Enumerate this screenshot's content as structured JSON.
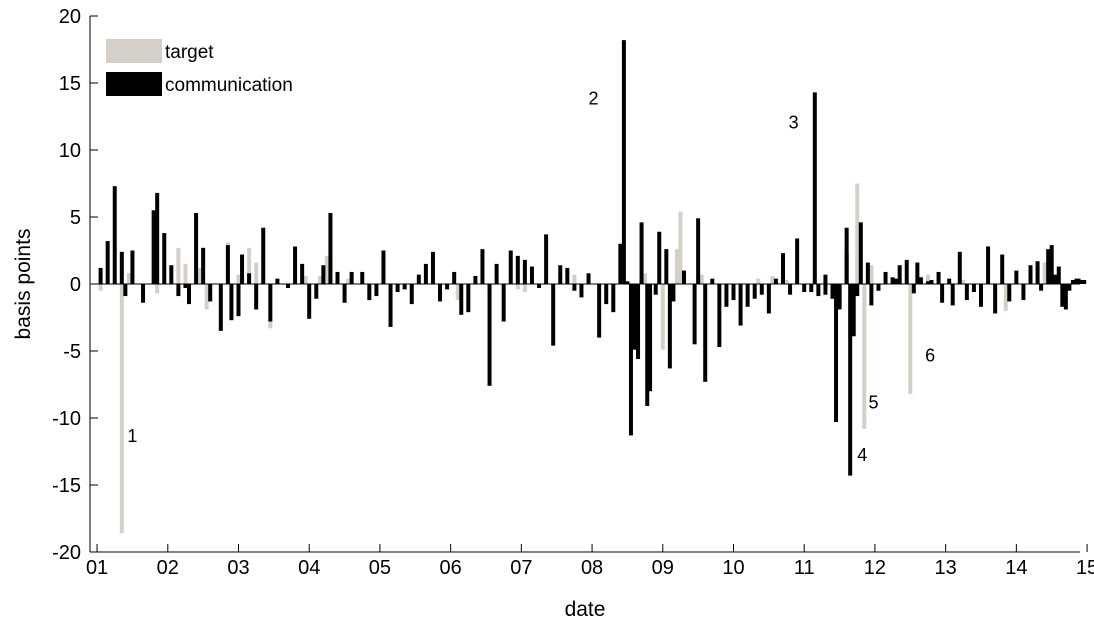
{
  "chart_data": {
    "type": "bar",
    "title": "",
    "xlabel": "date",
    "ylabel": "basis points",
    "xlim": [
      0.9,
      14.9
    ],
    "ylim": [
      -20,
      20
    ],
    "x_ticks": [
      "01",
      "02",
      "03",
      "04",
      "05",
      "06",
      "07",
      "08",
      "09",
      "10",
      "11",
      "12",
      "13",
      "14",
      "15"
    ],
    "y_ticks": [
      20,
      15,
      10,
      5,
      0,
      -5,
      -10,
      -15,
      -20
    ],
    "grid": false,
    "legend_position": "top-left",
    "colors": {
      "target": "#d4d0c8",
      "communication": "#000000"
    },
    "series": [
      {
        "name": "target",
        "values": [
          [
            1.05,
            -0.5
          ],
          [
            1.35,
            -18.6
          ],
          [
            1.45,
            0.8
          ],
          [
            1.85,
            -0.7
          ],
          [
            2.15,
            2.7
          ],
          [
            2.25,
            1.5
          ],
          [
            2.45,
            1.2
          ],
          [
            2.55,
            -1.9
          ],
          [
            2.85,
            3.1
          ],
          [
            3.0,
            0.7
          ],
          [
            3.15,
            2.7
          ],
          [
            3.25,
            1.6
          ],
          [
            3.45,
            -3.3
          ],
          [
            3.95,
            0.6
          ],
          [
            4.15,
            0.6
          ],
          [
            4.25,
            2.1
          ],
          [
            4.55,
            0.4
          ],
          [
            5.45,
            -0.3
          ],
          [
            6.1,
            -1.2
          ],
          [
            6.55,
            -0.6
          ],
          [
            6.95,
            -0.4
          ],
          [
            7.05,
            -0.6
          ],
          [
            7.75,
            0.7
          ],
          [
            8.2,
            -0.8
          ],
          [
            8.75,
            0.8
          ],
          [
            9.0,
            -4.9
          ],
          [
            9.2,
            2.6
          ],
          [
            9.25,
            5.4
          ],
          [
            9.55,
            0.7
          ],
          [
            10.35,
            0.4
          ],
          [
            10.55,
            0.6
          ],
          [
            10.75,
            0.3
          ],
          [
            11.3,
            0.3
          ],
          [
            11.75,
            7.5
          ],
          [
            11.85,
            -10.8
          ],
          [
            11.95,
            1.4
          ],
          [
            12.5,
            -8.2
          ],
          [
            12.75,
            0.7
          ],
          [
            13.25,
            0.3
          ],
          [
            13.85,
            -2.0
          ],
          [
            14.3,
            1.2
          ],
          [
            14.4,
            1.6
          ]
        ]
      },
      {
        "name": "communication",
        "values": [
          [
            1.05,
            1.2
          ],
          [
            1.15,
            3.2
          ],
          [
            1.25,
            7.3
          ],
          [
            1.35,
            2.4
          ],
          [
            1.4,
            -0.9
          ],
          [
            1.5,
            2.5
          ],
          [
            1.65,
            -1.4
          ],
          [
            1.8,
            5.5
          ],
          [
            1.85,
            6.8
          ],
          [
            1.95,
            3.8
          ],
          [
            2.05,
            1.4
          ],
          [
            2.15,
            -0.9
          ],
          [
            2.25,
            -0.3
          ],
          [
            2.3,
            -1.5
          ],
          [
            2.4,
            5.3
          ],
          [
            2.5,
            2.7
          ],
          [
            2.6,
            -1.3
          ],
          [
            2.75,
            -3.5
          ],
          [
            2.85,
            2.9
          ],
          [
            2.9,
            -2.7
          ],
          [
            3.0,
            -2.4
          ],
          [
            3.05,
            2.2
          ],
          [
            3.15,
            0.8
          ],
          [
            3.25,
            -1.9
          ],
          [
            3.35,
            4.2
          ],
          [
            3.45,
            -2.8
          ],
          [
            3.55,
            0.4
          ],
          [
            3.7,
            -0.3
          ],
          [
            3.8,
            2.8
          ],
          [
            3.9,
            1.5
          ],
          [
            4.0,
            -2.6
          ],
          [
            4.1,
            -1.1
          ],
          [
            4.2,
            1.4
          ],
          [
            4.3,
            5.3
          ],
          [
            4.4,
            0.9
          ],
          [
            4.5,
            -1.4
          ],
          [
            4.6,
            0.9
          ],
          [
            4.75,
            0.9
          ],
          [
            4.85,
            -1.2
          ],
          [
            4.95,
            -0.9
          ],
          [
            5.05,
            2.5
          ],
          [
            5.15,
            -3.2
          ],
          [
            5.25,
            -0.6
          ],
          [
            5.35,
            -0.4
          ],
          [
            5.45,
            -1.5
          ],
          [
            5.55,
            0.7
          ],
          [
            5.65,
            1.5
          ],
          [
            5.75,
            2.4
          ],
          [
            5.85,
            -1.3
          ],
          [
            5.95,
            -0.4
          ],
          [
            6.05,
            0.9
          ],
          [
            6.15,
            -2.3
          ],
          [
            6.25,
            -2.1
          ],
          [
            6.35,
            0.6
          ],
          [
            6.45,
            2.6
          ],
          [
            6.55,
            -7.6
          ],
          [
            6.65,
            1.5
          ],
          [
            6.75,
            -2.8
          ],
          [
            6.85,
            2.5
          ],
          [
            6.95,
            2.1
          ],
          [
            7.05,
            1.8
          ],
          [
            7.15,
            1.3
          ],
          [
            7.25,
            -0.3
          ],
          [
            7.35,
            3.7
          ],
          [
            7.45,
            -4.6
          ],
          [
            7.55,
            1.4
          ],
          [
            7.65,
            1.2
          ],
          [
            7.75,
            -0.5
          ],
          [
            7.85,
            -1.0
          ],
          [
            7.95,
            0.8
          ],
          [
            8.1,
            -4.0
          ],
          [
            8.2,
            -1.5
          ],
          [
            8.3,
            -2.1
          ],
          [
            8.4,
            3.0
          ],
          [
            8.5,
            0.2
          ],
          [
            8.6,
            -4.9
          ],
          [
            8.7,
            4.6
          ],
          [
            8.8,
            -1.6
          ],
          [
            8.9,
            -0.8
          ],
          [
            8.45,
            18.2
          ],
          [
            8.55,
            -11.3
          ],
          [
            8.65,
            -5.6
          ],
          [
            8.7,
            0.4
          ],
          [
            8.78,
            -9.1
          ],
          [
            8.82,
            -8.0
          ],
          [
            8.95,
            3.9
          ],
          [
            9.05,
            2.6
          ],
          [
            9.1,
            -6.3
          ],
          [
            9.15,
            -1.3
          ],
          [
            9.3,
            1.0
          ],
          [
            9.45,
            -4.5
          ],
          [
            9.5,
            4.9
          ],
          [
            9.6,
            -7.3
          ],
          [
            9.7,
            0.4
          ],
          [
            9.8,
            -4.7
          ],
          [
            9.9,
            -1.7
          ],
          [
            10.0,
            -1.2
          ],
          [
            10.1,
            -3.1
          ],
          [
            10.2,
            -1.7
          ],
          [
            10.3,
            -1.1
          ],
          [
            10.4,
            -0.8
          ],
          [
            10.5,
            -2.2
          ],
          [
            10.6,
            0.4
          ],
          [
            10.7,
            2.3
          ],
          [
            10.8,
            -0.8
          ],
          [
            10.9,
            3.4
          ],
          [
            11.0,
            -0.6
          ],
          [
            11.1,
            -0.6
          ],
          [
            11.2,
            -0.9
          ],
          [
            11.3,
            -0.8
          ],
          [
            11.4,
            -1.1
          ],
          [
            11.5,
            -1.9
          ],
          [
            11.6,
            4.2
          ],
          [
            11.7,
            -3.9
          ],
          [
            11.15,
            14.3
          ],
          [
            11.3,
            0.7
          ],
          [
            11.45,
            -10.3
          ],
          [
            11.5,
            -1.8
          ],
          [
            11.6,
            2.3
          ],
          [
            11.65,
            -14.3
          ],
          [
            11.75,
            -0.9
          ],
          [
            11.8,
            4.6
          ],
          [
            11.9,
            1.6
          ],
          [
            11.95,
            -1.6
          ],
          [
            12.05,
            -0.5
          ],
          [
            12.15,
            0.9
          ],
          [
            12.25,
            0.5
          ],
          [
            12.3,
            0.4
          ],
          [
            12.35,
            1.4
          ],
          [
            12.45,
            1.8
          ],
          [
            12.55,
            -0.7
          ],
          [
            12.6,
            1.6
          ],
          [
            12.65,
            0.5
          ],
          [
            12.75,
            0.2
          ],
          [
            12.8,
            0.3
          ],
          [
            12.9,
            0.9
          ],
          [
            12.95,
            -1.4
          ],
          [
            13.05,
            0.4
          ],
          [
            13.1,
            -1.6
          ],
          [
            13.2,
            2.4
          ],
          [
            13.3,
            -1.2
          ],
          [
            13.4,
            -0.6
          ],
          [
            13.5,
            -1.7
          ],
          [
            13.6,
            2.8
          ],
          [
            13.7,
            -2.2
          ],
          [
            13.8,
            2.2
          ],
          [
            13.9,
            -1.3
          ],
          [
            14.0,
            1.0
          ],
          [
            14.1,
            -1.2
          ],
          [
            14.2,
            1.4
          ],
          [
            14.3,
            1.7
          ],
          [
            14.35,
            -0.5
          ],
          [
            14.45,
            2.6
          ],
          [
            14.5,
            2.9
          ],
          [
            14.55,
            0.7
          ],
          [
            14.6,
            1.3
          ],
          [
            14.65,
            -1.7
          ],
          [
            14.7,
            -1.9
          ],
          [
            14.75,
            -0.5
          ],
          [
            14.8,
            0.3
          ],
          [
            14.85,
            0.4
          ],
          [
            14.88,
            0.4
          ],
          [
            14.92,
            0.3
          ],
          [
            14.96,
            0.3
          ]
        ]
      }
    ],
    "annotations": [
      {
        "text": "1",
        "x": 1.5,
        "y": -11.8
      },
      {
        "text": "2",
        "x": 8.02,
        "y": 13.4
      },
      {
        "text": "3",
        "x": 10.85,
        "y": 11.6
      },
      {
        "text": "4",
        "x": 11.82,
        "y": -13.2
      },
      {
        "text": "5",
        "x": 11.98,
        "y": -9.3
      },
      {
        "text": "6",
        "x": 12.78,
        "y": -5.8
      }
    ]
  }
}
